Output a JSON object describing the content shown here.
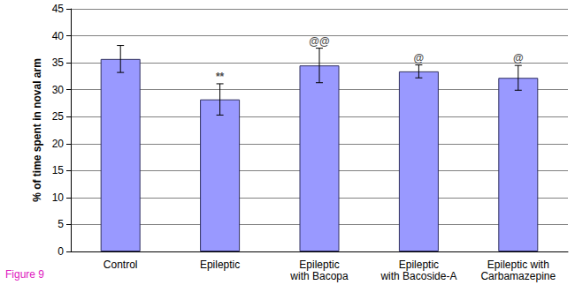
{
  "chart_data": {
    "type": "bar",
    "caption": "Figure 9",
    "y_label": "% of time spent in noval arm",
    "categories": [
      "Control",
      "Epileptic",
      "Epileptic\nwith Bacopa",
      "Epileptic\nwith Bacoside-A",
      "Epileptic with\nCarbamazepine"
    ],
    "values": [
      35.7,
      28.2,
      34.5,
      33.4,
      32.2
    ],
    "errors": [
      2.5,
      2.9,
      3.2,
      1.2,
      2.3
    ],
    "significance": [
      null,
      "**",
      "@@",
      "@",
      "@"
    ],
    "color": "#9999ff",
    "ylim": [
      0,
      45
    ],
    "yticks": [
      0,
      5,
      10,
      15,
      20,
      25,
      30,
      35,
      40,
      45
    ],
    "grid": true
  }
}
